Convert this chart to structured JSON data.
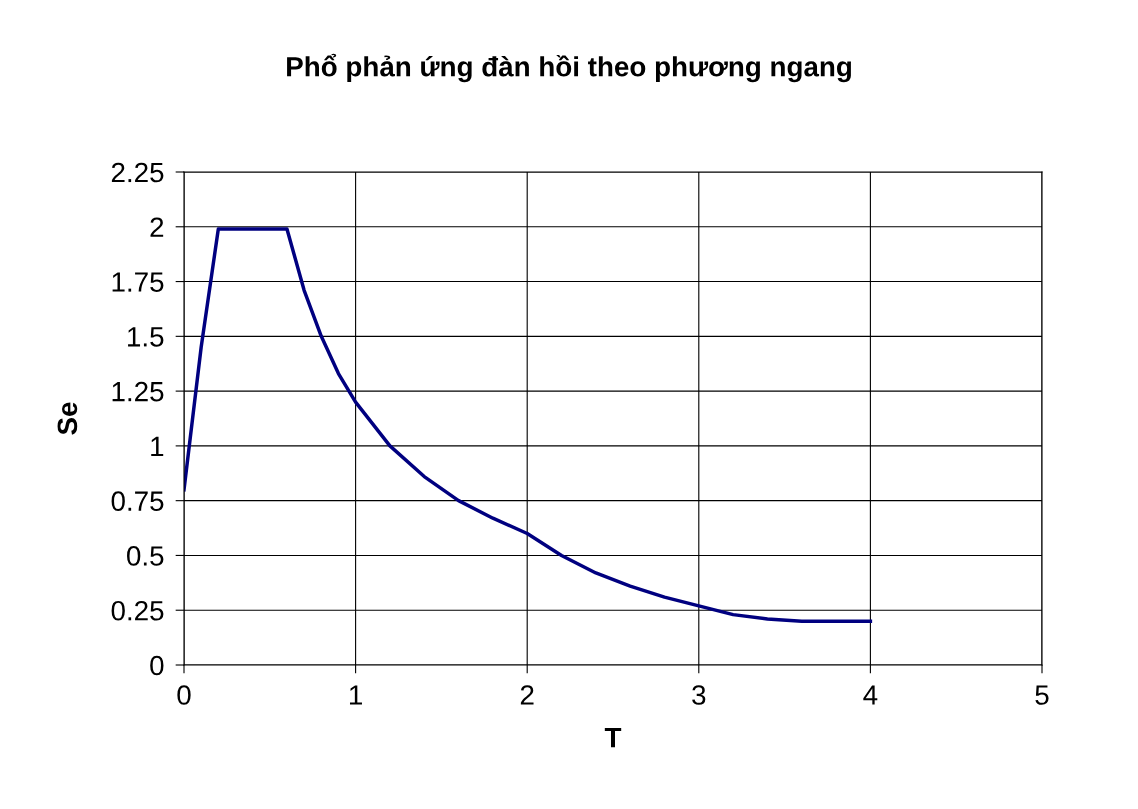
{
  "chart_data": {
    "type": "line",
    "title": "Phổ phản ứng đàn hồi theo phương ngang",
    "xlabel": "T",
    "ylabel": "Se",
    "x": [
      0,
      0.1,
      0.2,
      0.6,
      0.7,
      0.8,
      0.9,
      1.0,
      1.2,
      1.4,
      1.6,
      1.8,
      2.0,
      2.2,
      2.4,
      2.6,
      2.8,
      3.0,
      3.2,
      3.4,
      3.6,
      3.8,
      4.0
    ],
    "series": [
      {
        "color": "#000080",
        "values": [
          0.8,
          1.45,
          1.99,
          1.99,
          1.71,
          1.5,
          1.33,
          1.2,
          1.0,
          0.86,
          0.75,
          0.67,
          0.6,
          0.5,
          0.42,
          0.36,
          0.31,
          0.27,
          0.23,
          0.21,
          0.2,
          0.2,
          0.2
        ]
      }
    ],
    "xlim": [
      0,
      5
    ],
    "xticks": [
      0,
      1,
      2,
      3,
      4,
      5
    ],
    "ylim": [
      0,
      2.25
    ],
    "yticks": [
      0,
      0.25,
      0.5,
      0.75,
      1,
      1.25,
      1.5,
      1.75,
      2,
      2.25
    ],
    "grid": true,
    "marker": "none",
    "line_style": "solid"
  }
}
